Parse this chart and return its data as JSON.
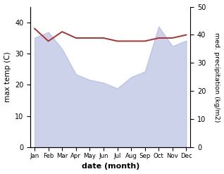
{
  "months": [
    "Jan",
    "Feb",
    "Mar",
    "Apr",
    "May",
    "Jun",
    "Jul",
    "Aug",
    "Sep",
    "Oct",
    "Nov",
    "Dec"
  ],
  "month_indices": [
    0,
    1,
    2,
    3,
    4,
    5,
    6,
    7,
    8,
    9,
    10,
    11
  ],
  "max_temp": [
    38,
    34,
    37,
    35,
    35,
    35,
    34,
    34,
    34,
    35,
    35,
    36
  ],
  "precipitation": [
    39,
    41,
    35,
    26,
    24,
    23,
    21,
    25,
    27,
    43,
    36,
    38
  ],
  "fill_color": "#aab4dd",
  "temp_line_color": "#b03030",
  "xlabel": "date (month)",
  "ylabel_left": "max temp (C)",
  "ylabel_right": "med. precipitation (kg/m2)",
  "ylim_left": [
    0,
    45
  ],
  "ylim_right": [
    0,
    50
  ],
  "yticks_left": [
    0,
    10,
    20,
    30,
    40
  ],
  "yticks_right": [
    0,
    10,
    20,
    30,
    40,
    50
  ],
  "background_color": "#ffffff"
}
